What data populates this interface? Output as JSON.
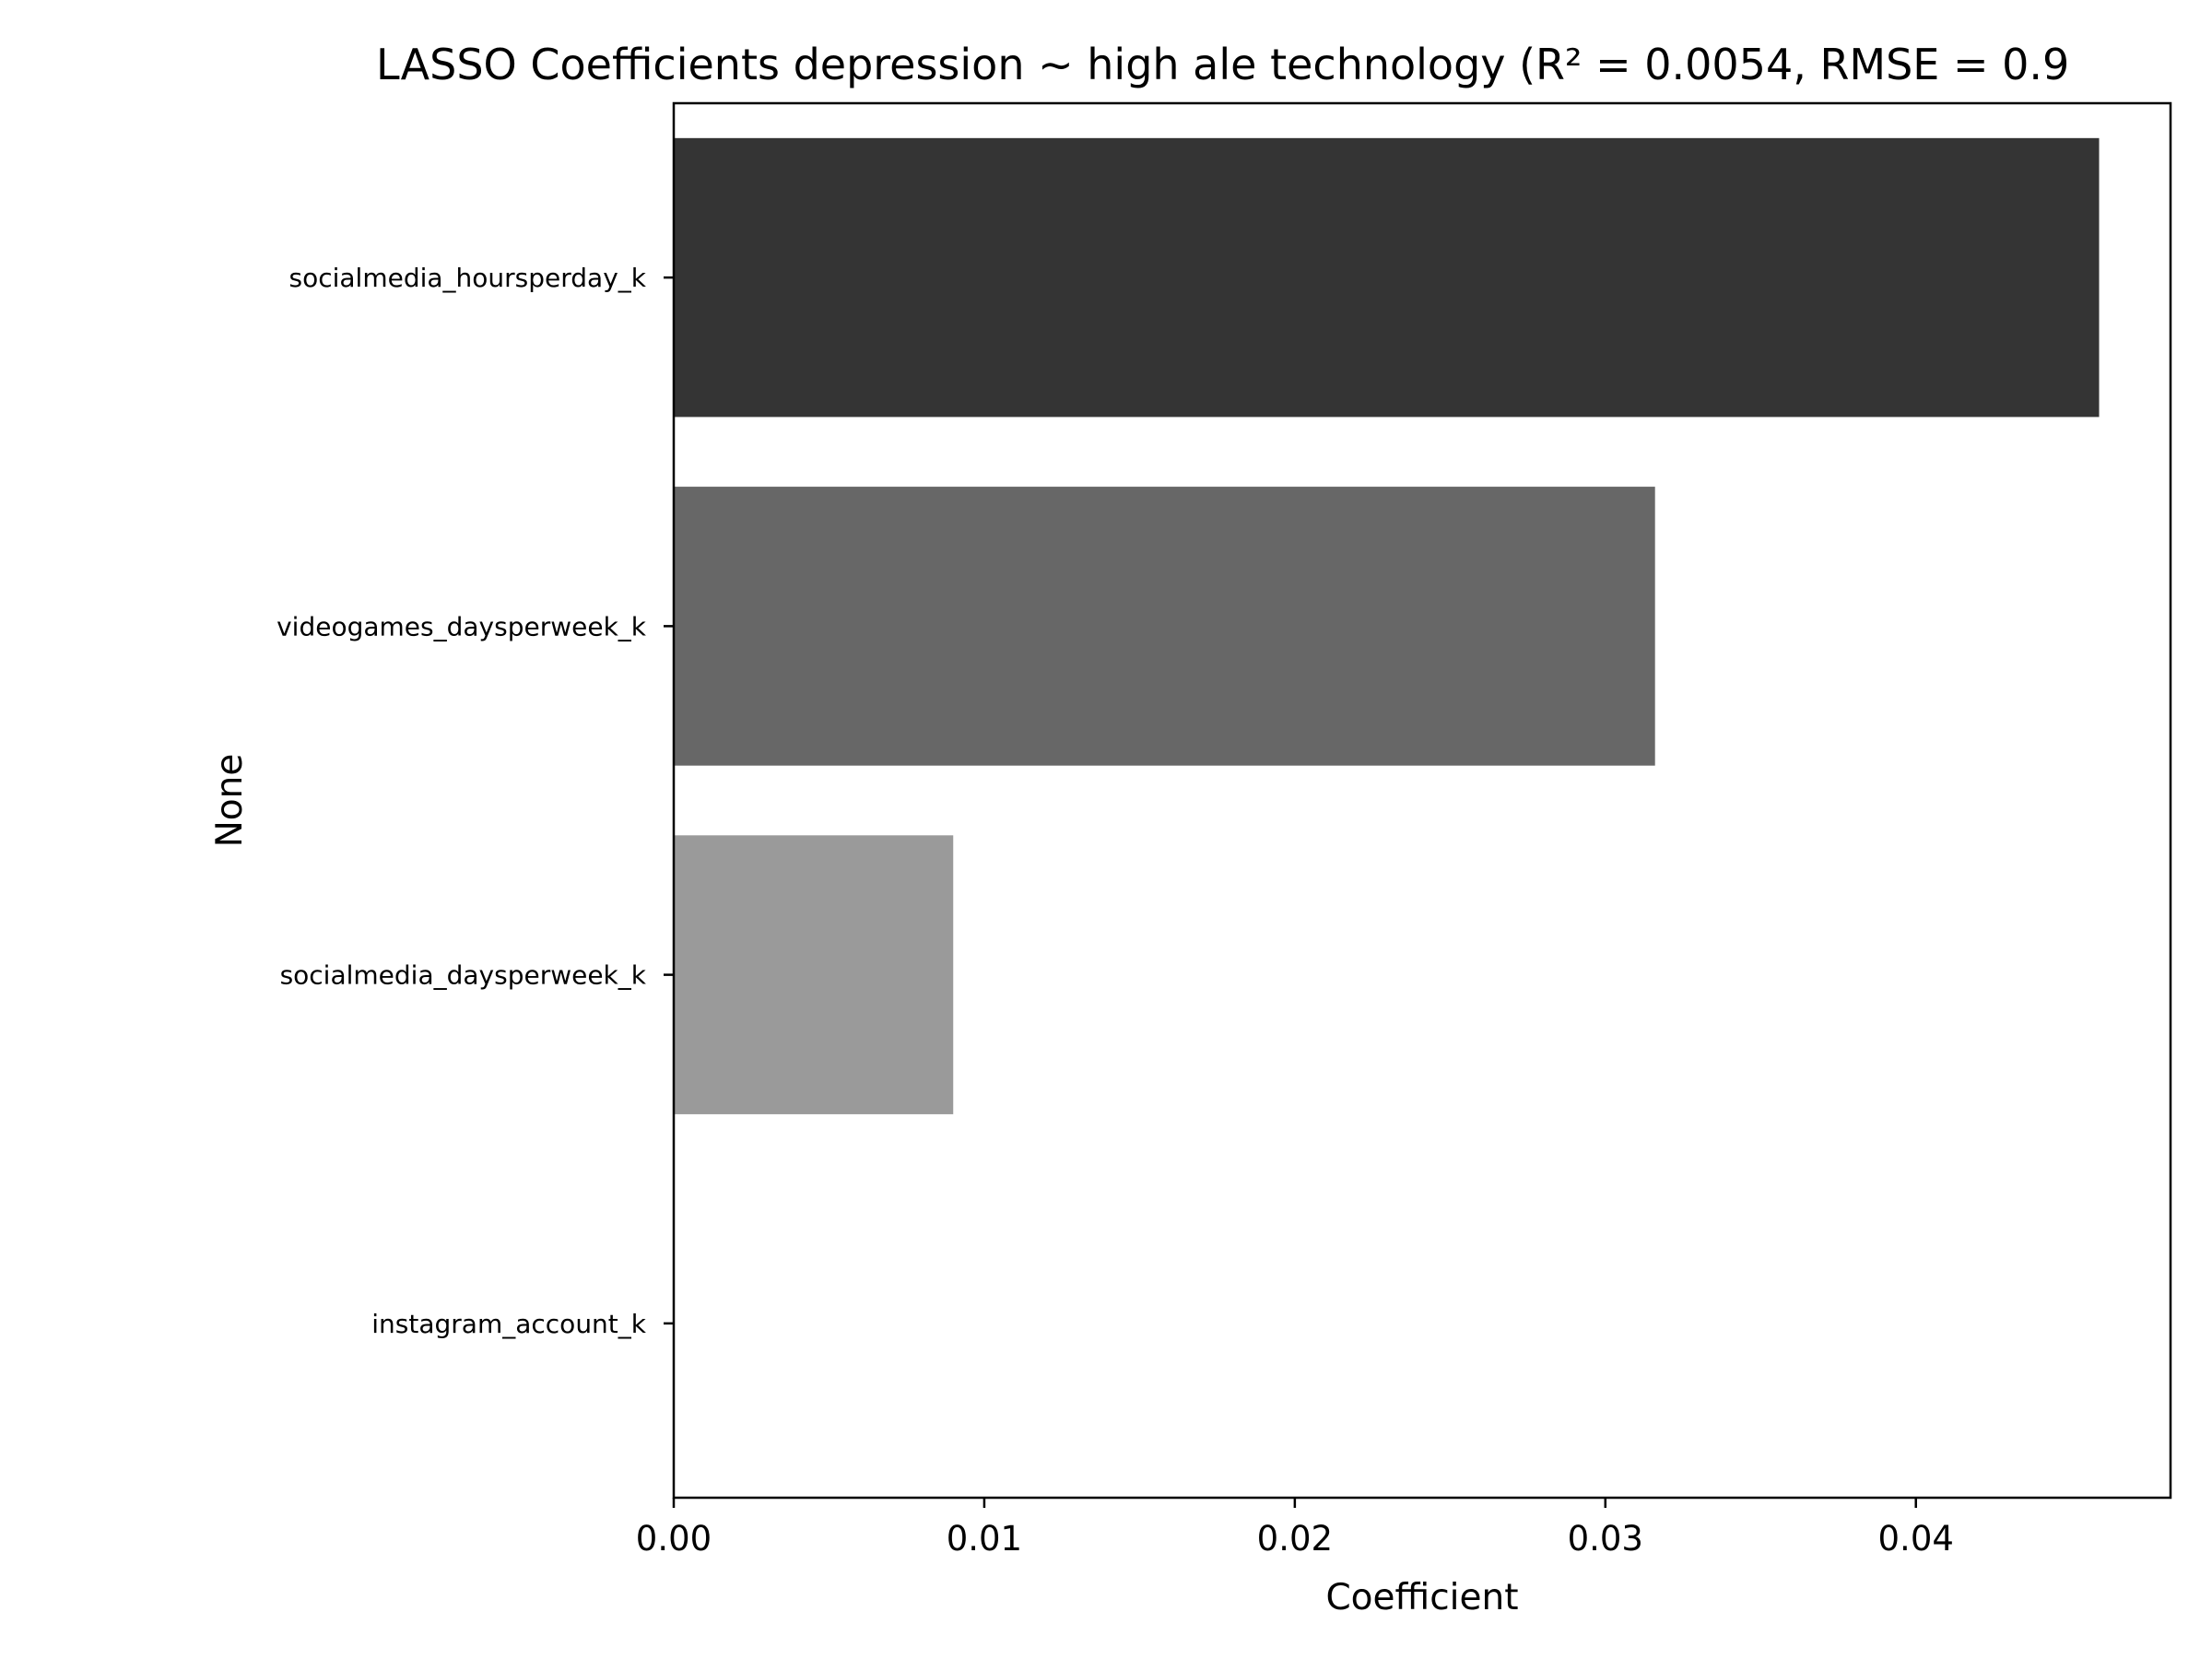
{
  "chart_data": {
    "type": "bar",
    "orientation": "horizontal",
    "title": "LASSO Coefficients depression ~ high ale technology (R² = 0.0054, RMSE = 0.9",
    "xlabel": "Coefficient",
    "ylabel": "None",
    "xlim": [
      0,
      0.0482
    ],
    "x_ticks": [
      "0.00",
      "0.01",
      "0.02",
      "0.03",
      "0.04"
    ],
    "grid": false,
    "legend": "none",
    "categories": [
      "socialmedia_hoursperday_k",
      "videogames_daysperweek_k",
      "socialmedia_daysperweek_k",
      "instagram_account_k"
    ],
    "values": [
      0.0459,
      0.0316,
      0.009,
      0.0
    ],
    "colors": [
      "#343434",
      "#676767",
      "#9a9a9a",
      "#cdcdcd"
    ]
  }
}
